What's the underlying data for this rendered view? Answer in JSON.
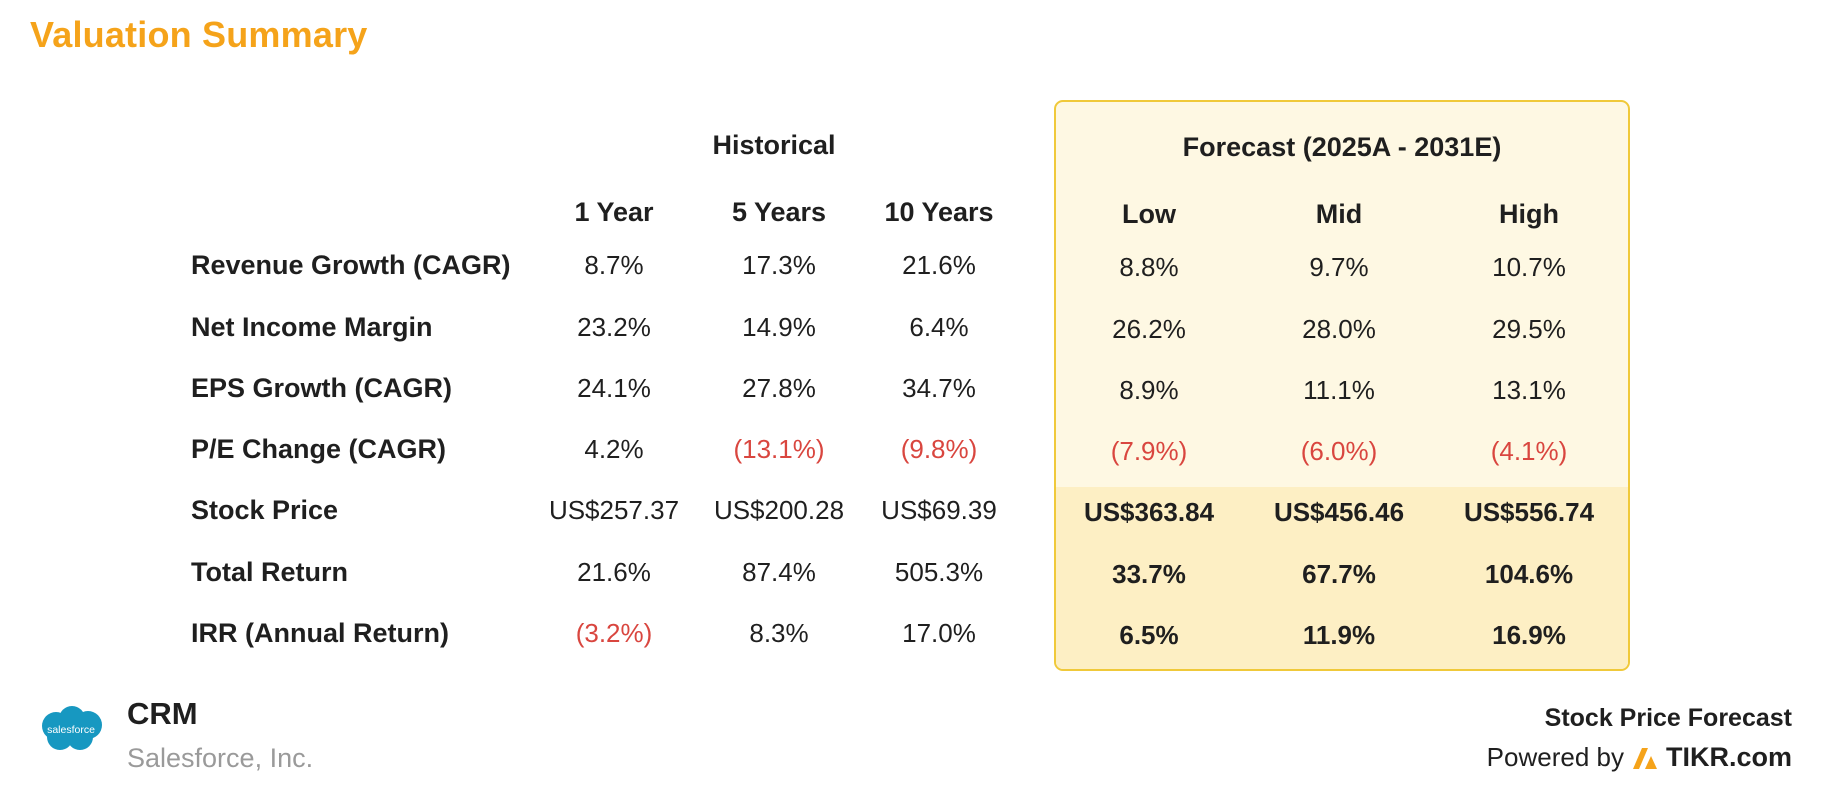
{
  "title": "Valuation Summary",
  "historical_header": "Historical",
  "forecast_header": "Forecast (2025A - 2031E)",
  "historical_columns": [
    "1 Year",
    "5 Years",
    "10 Years"
  ],
  "forecast_columns": [
    "Low",
    "Mid",
    "High"
  ],
  "rows": [
    {
      "label": "Revenue Growth (CAGR)",
      "values": [
        "8.7%",
        "17.3%",
        "21.6%",
        "8.8%",
        "9.7%",
        "10.7%"
      ]
    },
    {
      "label": "Net Income Margin",
      "values": [
        "23.2%",
        "14.9%",
        "6.4%",
        "26.2%",
        "28.0%",
        "29.5%"
      ]
    },
    {
      "label": "EPS Growth (CAGR)",
      "values": [
        "24.1%",
        "27.8%",
        "34.7%",
        "8.9%",
        "11.1%",
        "13.1%"
      ]
    },
    {
      "label": "P/E Change (CAGR)",
      "values": [
        "4.2%",
        "(13.1%)",
        "(9.8%)",
        "(7.9%)",
        "(6.0%)",
        "(4.1%)"
      ]
    },
    {
      "label": "Stock Price",
      "values": [
        "US$257.37",
        "US$200.28",
        "US$69.39",
        "US$363.84",
        "US$456.46",
        "US$556.74"
      ]
    },
    {
      "label": "Total Return",
      "values": [
        "21.6%",
        "87.4%",
        "505.3%",
        "33.7%",
        "67.7%",
        "104.6%"
      ]
    },
    {
      "label": "IRR (Annual Return)",
      "values": [
        "(3.2%)",
        "8.3%",
        "17.0%",
        "6.5%",
        "11.9%",
        "16.9%"
      ]
    }
  ],
  "footer": {
    "logo_text": "salesforce",
    "ticker": "CRM",
    "company": "Salesforce, Inc.",
    "forecast_label": "Stock Price Forecast",
    "powered_by": "Powered by",
    "brand": "TIKR.com"
  },
  "colors": {
    "title": "#f5a31a",
    "negative": "#d9463f",
    "forecast_border": "#f0c93a",
    "forecast_bg": "#fef8e3",
    "forecast_bg_lower": "#fdefc4",
    "logo": "#1798c1"
  }
}
